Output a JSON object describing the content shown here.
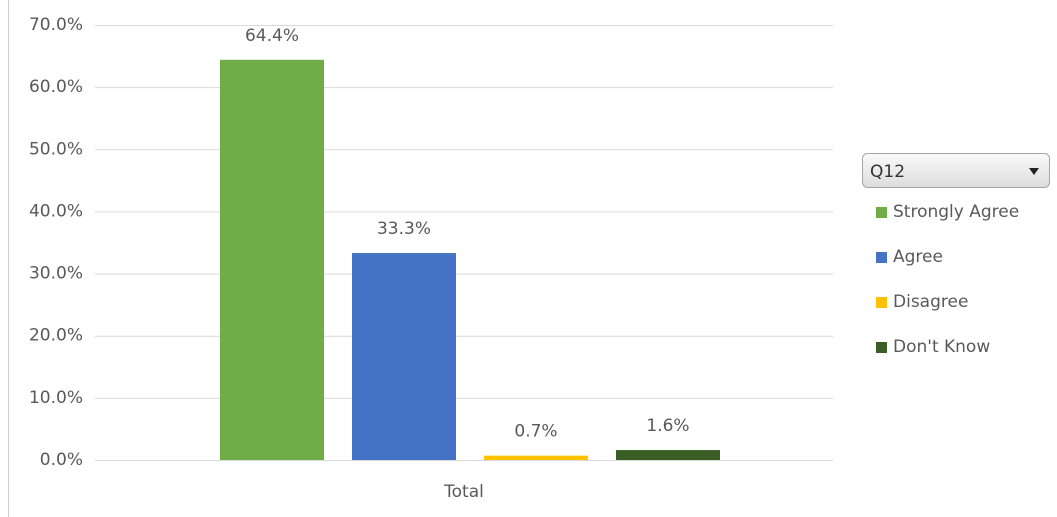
{
  "chart_data": {
    "type": "bar",
    "categories": [
      "Total"
    ],
    "legend_title": "Q12",
    "series": [
      {
        "name": "Strongly Agree",
        "color": "#70ad47",
        "values": [
          64.4
        ],
        "value_labels": [
          "64.4%"
        ]
      },
      {
        "name": "Agree",
        "color": "#4472c4",
        "values": [
          33.3
        ],
        "value_labels": [
          "33.3%"
        ]
      },
      {
        "name": "Disagree",
        "color": "#ffc000",
        "values": [
          0.7
        ],
        "value_labels": [
          "0.7%"
        ]
      },
      {
        "name": "Don't Know",
        "color": "#3a5e25",
        "values": [
          1.6
        ],
        "value_labels": [
          "1.6%"
        ]
      }
    ],
    "ylim": [
      0,
      70
    ],
    "yticks": [
      {
        "value": 0,
        "label": "0.0%"
      },
      {
        "value": 10,
        "label": "10.0%"
      },
      {
        "value": 20,
        "label": "20.0%"
      },
      {
        "value": 30,
        "label": "30.0%"
      },
      {
        "value": 40,
        "label": "40.0%"
      },
      {
        "value": 50,
        "label": "50.0%"
      },
      {
        "value": 60,
        "label": "60.0%"
      },
      {
        "value": 70,
        "label": "70.0%"
      }
    ],
    "grid": true,
    "legend": "right"
  }
}
